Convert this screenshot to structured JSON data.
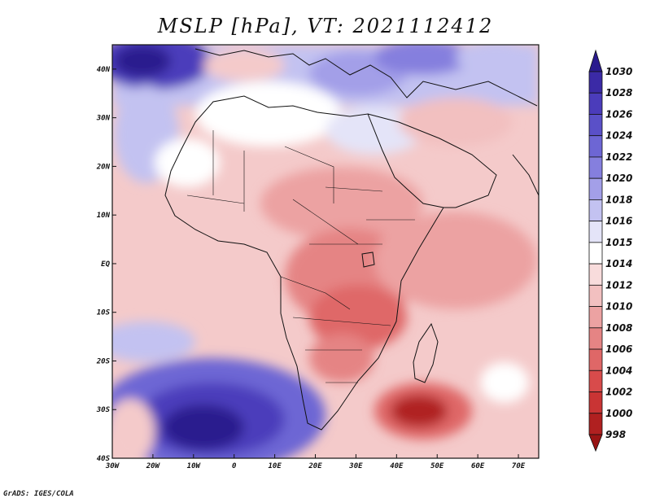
{
  "title": "MSLP [hPa], VT: 2021112412",
  "footer": "GrADS: IGES/COLA",
  "map": {
    "lon_range": [
      -30,
      75
    ],
    "lat_range": [
      -40,
      45
    ],
    "lat_labels": [
      "40N",
      "30N",
      "20N",
      "10N",
      "EQ",
      "10S",
      "20S",
      "30S",
      "40S"
    ],
    "lon_labels": [
      "30W",
      "20W",
      "10W",
      "0",
      "10E",
      "20E",
      "30E",
      "40E",
      "50E",
      "60E",
      "70E"
    ]
  },
  "colorbar": {
    "levels": [
      "1030",
      "1028",
      "1026",
      "1024",
      "1022",
      "1020",
      "1018",
      "1016",
      "1015",
      "1014",
      "1012",
      "1010",
      "1008",
      "1006",
      "1004",
      "1002",
      "1000",
      "998"
    ],
    "colors": [
      "#2a1a8e",
      "#3b2aa6",
      "#4b3cbb",
      "#5a50c8",
      "#6d66d4",
      "#857fde",
      "#a39fe8",
      "#c3c2f1",
      "#e4e4f8",
      "#ffffff",
      "#f8dcdc",
      "#f2c0c0",
      "#eca2a2",
      "#e58484",
      "#df6767",
      "#d84b4b",
      "#c93434",
      "#b02020",
      "#991414"
    ]
  }
}
